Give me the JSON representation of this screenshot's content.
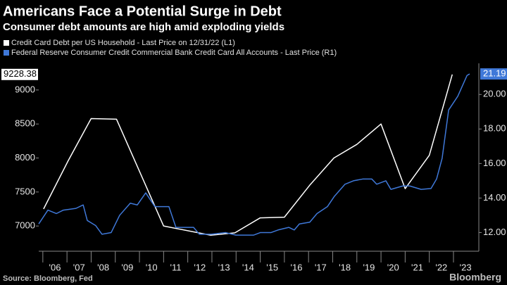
{
  "chart_data": {
    "type": "line",
    "title": "Americans Face a Potential Surge in Debt",
    "subtitle": "Consumer debt amounts are high amid exploding yields",
    "source": "Source: Bloomberg, Fed",
    "brand": "Bloomberg",
    "xlim": [
      2005.83,
      2024.05
    ],
    "xticks": [
      {
        "value": 2006,
        "label": "'06"
      },
      {
        "value": 2007,
        "label": "'07"
      },
      {
        "value": 2008,
        "label": "'08"
      },
      {
        "value": 2009,
        "label": "'09"
      },
      {
        "value": 2010,
        "label": "'10"
      },
      {
        "value": 2011,
        "label": "'11"
      },
      {
        "value": 2012,
        "label": "'12"
      },
      {
        "value": 2013,
        "label": "'13"
      },
      {
        "value": 2014,
        "label": "'14"
      },
      {
        "value": 2015,
        "label": "'15"
      },
      {
        "value": 2016,
        "label": "'16"
      },
      {
        "value": 2017,
        "label": "'17"
      },
      {
        "value": 2018,
        "label": "'18"
      },
      {
        "value": 2019,
        "label": "'19"
      },
      {
        "value": 2020,
        "label": "'20"
      },
      {
        "value": 2021,
        "label": "'21"
      },
      {
        "value": 2022,
        "label": "'22"
      },
      {
        "value": 2023,
        "label": "'23"
      }
    ],
    "ylim": [
      6650,
      9340
    ],
    "yticks": [
      7000,
      7500,
      8000,
      8500,
      9000
    ],
    "y2lim": [
      11,
      21.6
    ],
    "y2ticks": [
      {
        "value": 12,
        "label": "12.00"
      },
      {
        "value": 14,
        "label": "14.00"
      },
      {
        "value": 16,
        "label": "16.00"
      },
      {
        "value": 18,
        "label": "18.00"
      },
      {
        "value": 20,
        "label": "20.00"
      }
    ],
    "series": [
      {
        "name": "Credit Card Debt per US Household - Last Price on 12/31/22 (L1)",
        "color": "#ffffff",
        "axis": "y",
        "x": [
          2006.03,
          2007.05,
          2008.0,
          2009.05,
          2011.0,
          2012.95,
          2013.95,
          2015.0,
          2016.0,
          2017.05,
          2018.05,
          2019.0,
          2020.0,
          2021.0,
          2022.0,
          2022.95
        ],
        "values": [
          7250,
          7960,
          8580,
          8570,
          7000,
          6865,
          6900,
          7120,
          7130,
          7600,
          8000,
          8200,
          8500,
          7550,
          8040,
          9228.38
        ]
      },
      {
        "name": "Federal Reserve Consumer Credit Commercial Bank Credit Card All Accounts - Last Price (R1)",
        "color": "#3f78d8",
        "axis": "y2",
        "x": [
          2005.83,
          2006.21,
          2006.56,
          2006.85,
          2007.37,
          2007.67,
          2007.84,
          2008.19,
          2008.45,
          2008.83,
          2009.18,
          2009.62,
          2009.91,
          2010.26,
          2010.64,
          2011.22,
          2011.51,
          2012.24,
          2012.48,
          2012.97,
          2013.56,
          2013.99,
          2014.72,
          2015.01,
          2015.45,
          2015.74,
          2016.18,
          2016.41,
          2016.62,
          2017.05,
          2017.35,
          2017.78,
          2018.07,
          2018.51,
          2018.86,
          2019.24,
          2019.62,
          2019.82,
          2020.2,
          2020.41,
          2020.9,
          2021.19,
          2021.66,
          2022.07,
          2022.3,
          2022.53,
          2022.8,
          2023.18,
          2023.56,
          2023.67
        ],
        "values": [
          12.5,
          13.3,
          13.1,
          13.3,
          13.4,
          13.6,
          12.7,
          12.4,
          11.9,
          12.0,
          13.0,
          13.7,
          13.6,
          14.3,
          13.5,
          13.5,
          12.3,
          12.3,
          11.9,
          11.9,
          12.0,
          11.85,
          11.85,
          12.0,
          12.0,
          12.15,
          12.3,
          12.15,
          12.5,
          12.6,
          13.1,
          13.5,
          14.1,
          14.8,
          15.0,
          15.1,
          15.1,
          14.8,
          15.0,
          14.5,
          14.7,
          14.7,
          14.5,
          14.55,
          15.1,
          16.3,
          19.1,
          19.9,
          21.1,
          21.19
        ]
      }
    ]
  }
}
